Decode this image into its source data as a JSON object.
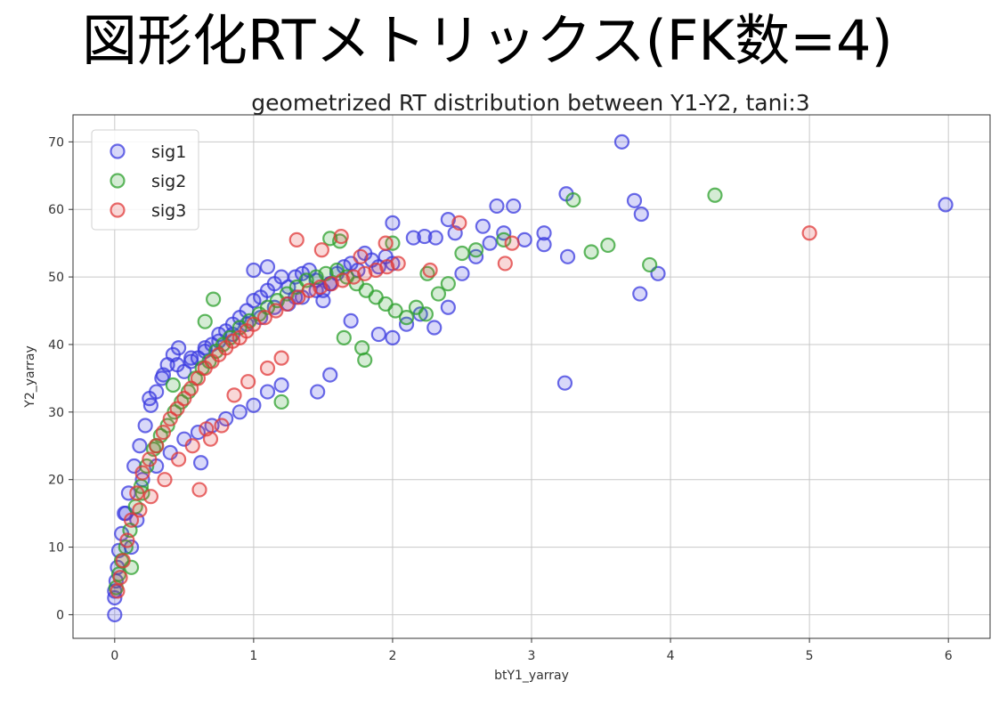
{
  "slide": {
    "title": "図形化RTメトリックス(FK数=4)"
  },
  "colors": {
    "sig1": "#3a3adf",
    "sig2": "#2ca02c",
    "sig3": "#e03a3a",
    "grid": "#c8c8c8"
  },
  "chart_data": {
    "type": "scatter",
    "title": "geometrized RT distribution between Y1-Y2, tani:3",
    "xlabel": "btY1_yarray",
    "ylabel": "Y2_yarray",
    "xlim": [
      -0.3,
      6.3
    ],
    "ylim": [
      -3.5,
      74
    ],
    "xticks": [
      0,
      1,
      2,
      3,
      4,
      5,
      6
    ],
    "yticks": [
      0,
      10,
      20,
      30,
      40,
      50,
      60,
      70
    ],
    "grid": true,
    "legend_position": "top-left",
    "marker": "hollow-circle",
    "series": [
      {
        "name": "sig1",
        "color": "#3a3adf",
        "x": [
          0.0,
          0.0,
          0.0,
          0.01,
          0.02,
          0.03,
          0.05,
          0.07,
          0.1,
          0.14,
          0.18,
          0.22,
          0.26,
          0.3,
          0.34,
          0.38,
          0.42,
          0.46,
          0.5,
          0.55,
          0.6,
          0.65,
          0.7,
          0.75,
          0.8,
          0.85,
          0.9,
          0.95,
          1.0,
          1.05,
          1.1,
          1.15,
          1.2,
          1.25,
          1.3,
          1.35,
          1.4,
          1.45,
          1.5,
          1.55,
          1.6,
          1.65,
          1.7,
          1.75,
          1.8,
          1.85,
          1.9,
          1.95,
          2.0,
          0.2,
          0.3,
          0.4,
          0.5,
          0.6,
          0.7,
          0.8,
          0.9,
          1.0,
          1.1,
          1.2,
          0.25,
          0.35,
          0.45,
          0.55,
          0.65,
          0.75,
          0.85,
          0.95,
          1.05,
          1.15,
          1.25,
          1.35,
          1.45,
          1.55,
          1.0,
          1.1,
          1.3,
          1.5,
          1.7,
          1.9,
          2.0,
          2.1,
          2.2,
          2.3,
          2.4,
          2.5,
          2.6,
          2.65,
          2.7,
          2.75,
          2.8,
          2.87,
          2.95,
          3.09,
          3.09,
          3.25,
          3.26,
          3.65,
          3.74,
          3.78,
          3.79,
          3.91,
          5.98,
          3.24,
          1.46,
          1.55,
          0.62,
          2.0,
          2.31,
          2.4,
          2.45,
          2.15,
          2.23,
          0.08,
          0.12,
          0.16
        ],
        "y": [
          0.0,
          3.5,
          2.5,
          5.0,
          7.0,
          9.5,
          12.0,
          15.0,
          18.0,
          22.0,
          25.0,
          28.0,
          31.0,
          33.0,
          35.0,
          37.0,
          38.5,
          39.5,
          36.0,
          37.5,
          38.0,
          39.0,
          40.0,
          41.5,
          42.0,
          43.0,
          44.0,
          45.0,
          46.5,
          47.0,
          48.0,
          49.0,
          50.0,
          48.5,
          47.0,
          50.5,
          51.0,
          49.5,
          48.0,
          49.0,
          50.5,
          51.5,
          52.0,
          51.0,
          53.5,
          52.5,
          51.5,
          53.0,
          52.0,
          20.0,
          22.0,
          24.0,
          26.0,
          27.0,
          28.0,
          29.0,
          30.0,
          31.0,
          33.0,
          34.0,
          32.0,
          35.5,
          37.0,
          38.0,
          39.5,
          40.5,
          41.5,
          43.0,
          44.0,
          45.5,
          46.0,
          47.0,
          48.0,
          49.0,
          51.0,
          51.5,
          50.0,
          46.5,
          43.5,
          41.5,
          41.0,
          43.0,
          44.5,
          42.5,
          45.5,
          50.5,
          53.0,
          57.5,
          55.0,
          60.5,
          56.5,
          60.5,
          55.5,
          56.5,
          54.8,
          62.3,
          53.0,
          70.0,
          61.3,
          47.5,
          59.3,
          50.5,
          60.7,
          34.3,
          33.0,
          35.5,
          22.5,
          58.0,
          55.8,
          58.5,
          56.5,
          55.8,
          56.0,
          15.0,
          10.0,
          14.0
        ]
      },
      {
        "name": "sig2",
        "color": "#2ca02c",
        "x": [
          0.01,
          0.03,
          0.05,
          0.08,
          0.11,
          0.15,
          0.19,
          0.23,
          0.28,
          0.33,
          0.38,
          0.43,
          0.48,
          0.53,
          0.58,
          0.63,
          0.68,
          0.73,
          0.78,
          0.83,
          0.9,
          0.97,
          1.04,
          1.1,
          1.17,
          1.24,
          1.31,
          1.38,
          1.45,
          1.52,
          1.6,
          1.67,
          1.74,
          1.81,
          1.88,
          1.95,
          2.02,
          2.1,
          2.17,
          2.24,
          2.33,
          2.4,
          2.5,
          2.6,
          2.8,
          3.3,
          3.43,
          3.55,
          3.85,
          4.32,
          0.65,
          0.71,
          1.55,
          1.62,
          2.0,
          2.25,
          0.12,
          0.2,
          0.3,
          0.42,
          1.8,
          1.78,
          1.65,
          1.2
        ],
        "y": [
          4.0,
          6.0,
          8.0,
          10.0,
          12.5,
          16.0,
          19.0,
          22.0,
          24.5,
          26.5,
          28.0,
          30.0,
          31.5,
          33.0,
          35.0,
          36.5,
          37.5,
          39.0,
          40.0,
          41.0,
          42.5,
          43.5,
          44.5,
          45.5,
          46.5,
          47.5,
          48.5,
          49.5,
          50.0,
          50.5,
          51.0,
          50.0,
          49.0,
          48.0,
          47.0,
          46.0,
          45.0,
          44.0,
          45.5,
          44.5,
          47.5,
          49.0,
          53.5,
          54.0,
          55.5,
          61.4,
          53.7,
          54.7,
          51.8,
          62.1,
          43.4,
          46.7,
          55.7,
          55.3,
          55.0,
          50.5,
          7.0,
          18.0,
          25.0,
          34.0,
          37.7,
          39.5,
          41.0,
          31.5
        ]
      },
      {
        "name": "sig3",
        "color": "#e03a3a",
        "x": [
          0.02,
          0.04,
          0.06,
          0.09,
          0.12,
          0.16,
          0.2,
          0.25,
          0.3,
          0.35,
          0.4,
          0.45,
          0.5,
          0.55,
          0.6,
          0.65,
          0.7,
          0.75,
          0.8,
          0.85,
          0.9,
          0.95,
          1.0,
          1.08,
          1.16,
          1.24,
          1.32,
          1.4,
          1.48,
          1.56,
          1.64,
          1.72,
          1.8,
          1.88,
          1.96,
          2.04,
          1.31,
          1.49,
          1.63,
          1.77,
          1.95,
          2.27,
          2.48,
          2.81,
          2.86,
          5.0,
          0.61,
          0.69,
          0.77,
          0.36,
          0.46,
          0.56,
          0.66,
          0.26,
          0.18,
          1.1,
          1.2,
          0.86,
          0.96
        ],
        "y": [
          3.5,
          5.5,
          8.0,
          11.0,
          14.0,
          18.0,
          21.0,
          23.0,
          25.0,
          27.0,
          29.0,
          30.5,
          32.0,
          33.5,
          35.0,
          36.5,
          37.5,
          38.5,
          39.5,
          40.5,
          41.0,
          42.0,
          43.0,
          44.0,
          45.0,
          46.0,
          47.0,
          48.0,
          48.5,
          49.0,
          49.5,
          50.0,
          50.5,
          51.0,
          51.5,
          52.0,
          55.5,
          54.0,
          56.0,
          53.0,
          55.0,
          51.0,
          58.0,
          52.0,
          55.0,
          56.5,
          18.5,
          26.0,
          28.0,
          20.0,
          23.0,
          25.0,
          27.5,
          17.5,
          15.5,
          36.5,
          38.0,
          32.5,
          34.5
        ]
      }
    ]
  }
}
